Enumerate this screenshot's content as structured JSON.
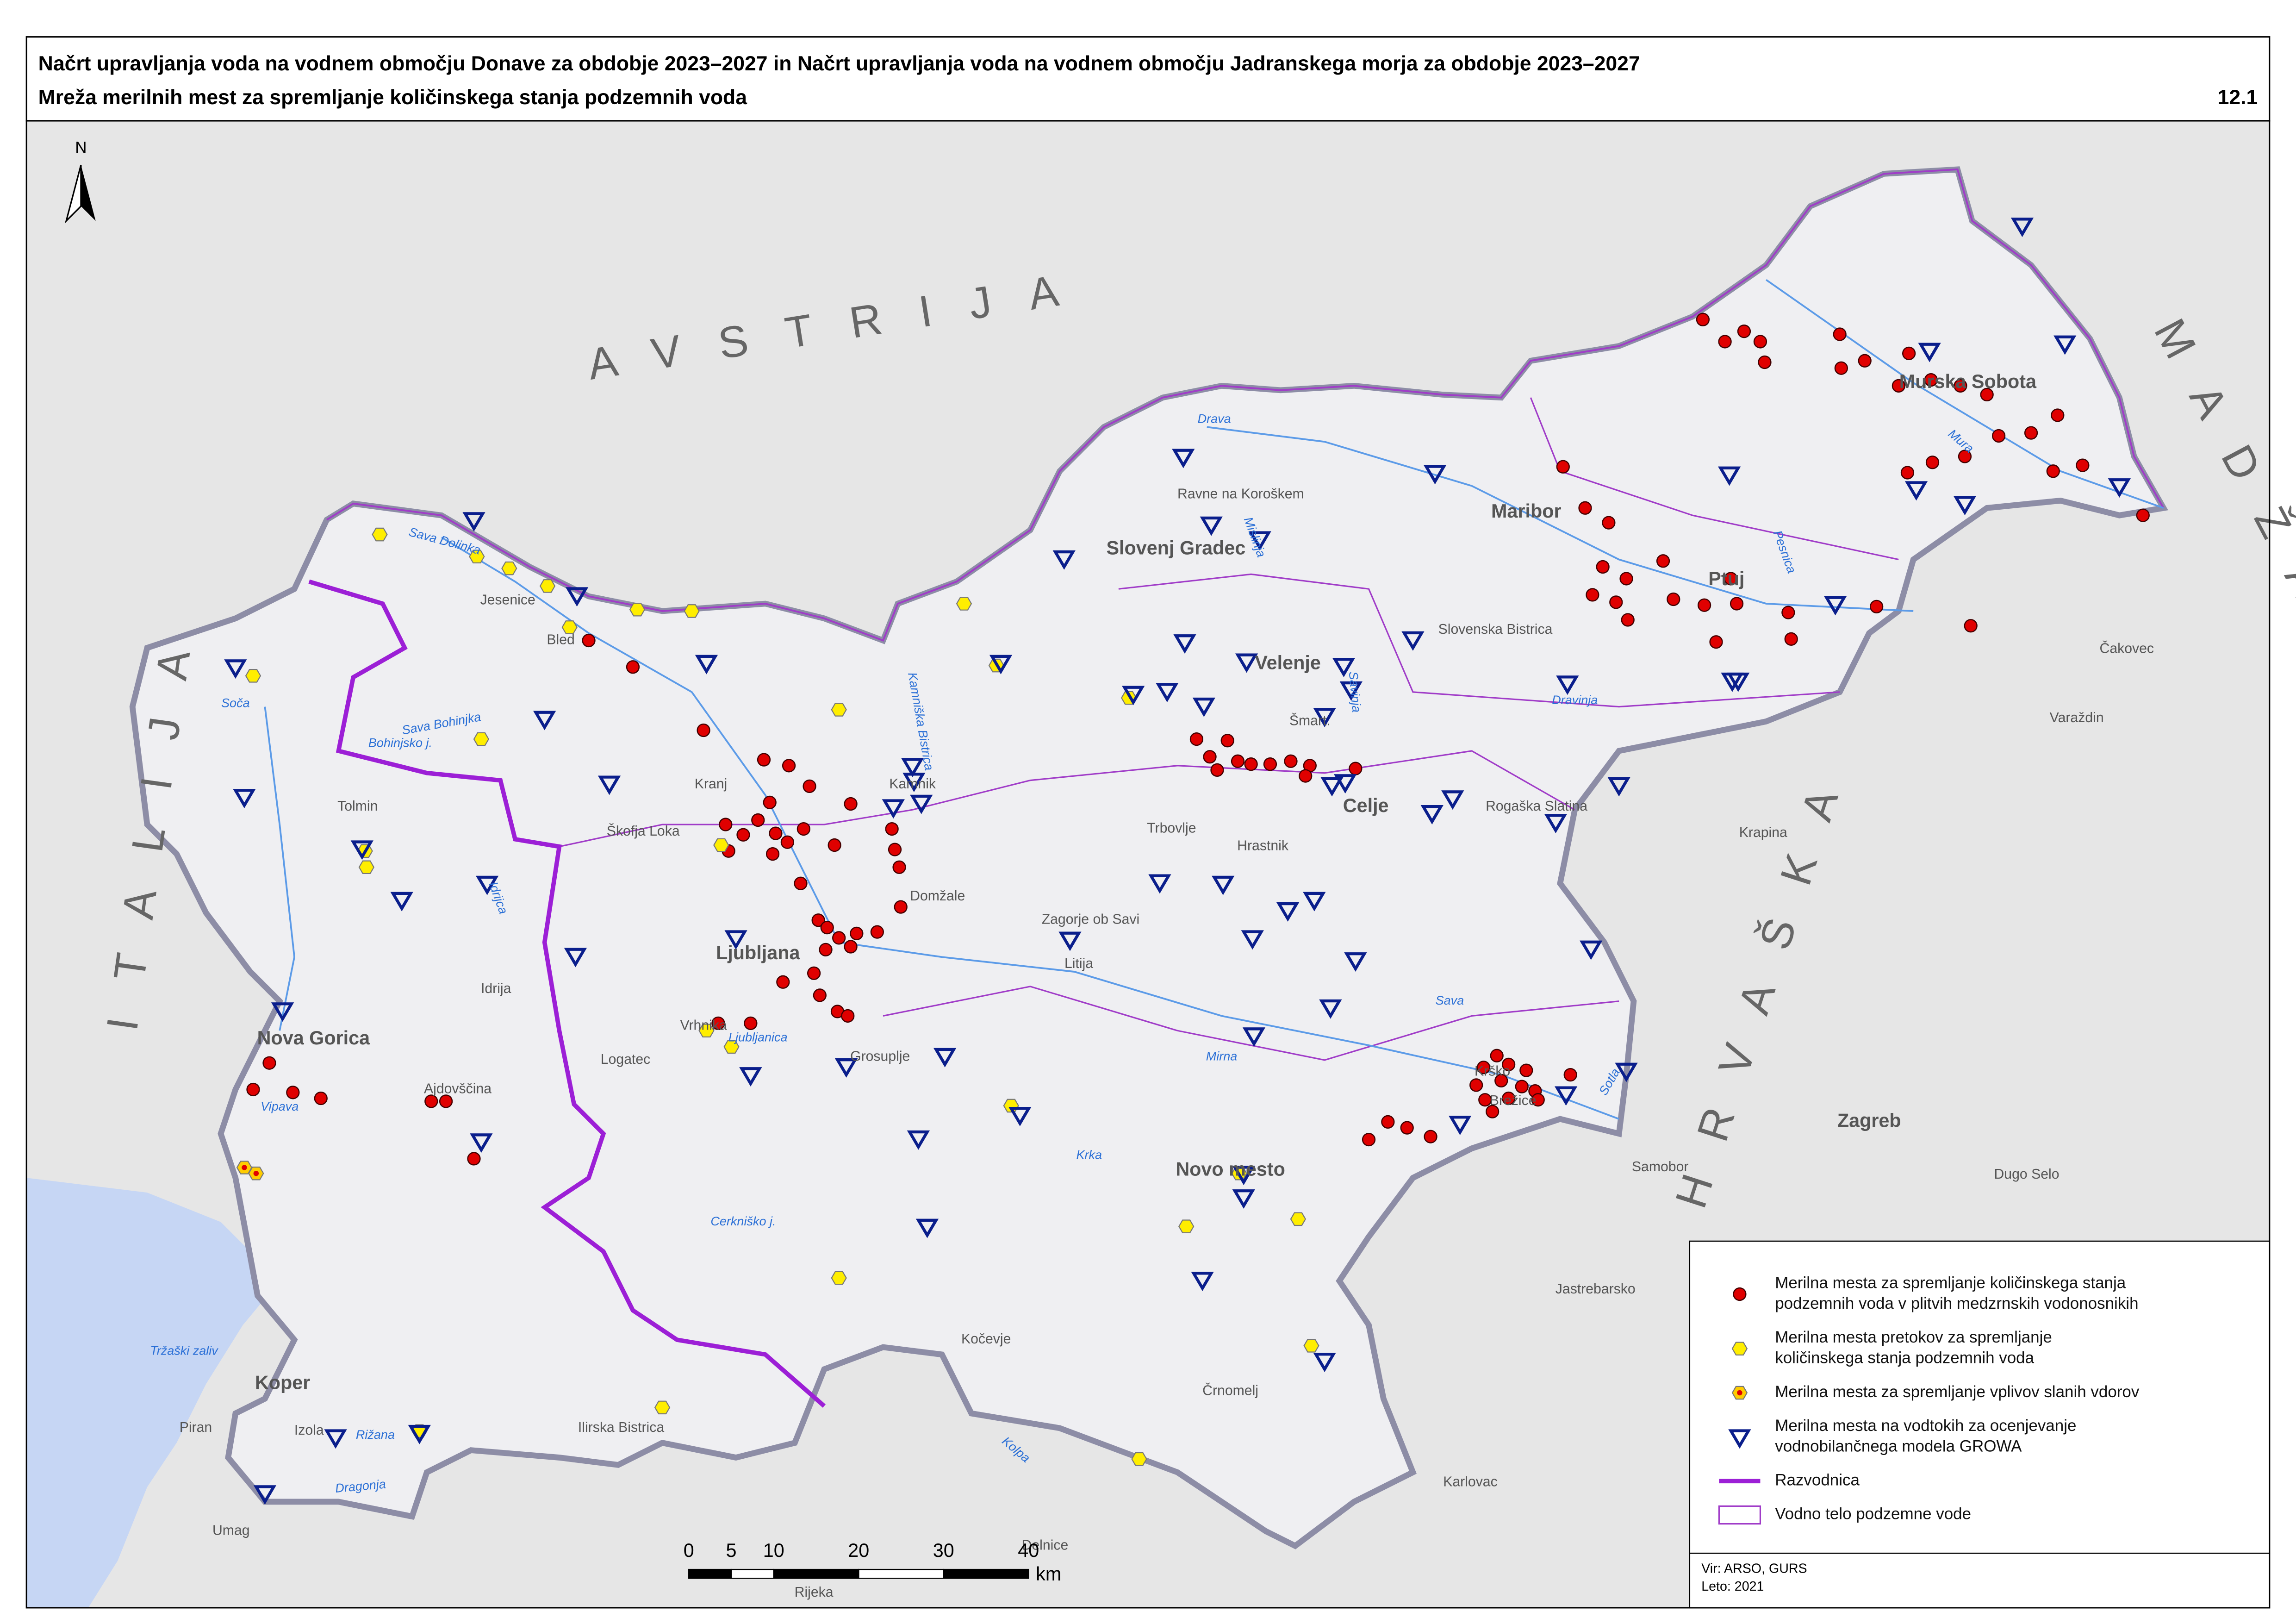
{
  "header": {
    "title": "Načrt upravljanja voda na vodnem območju Donave za obdobje 2023–2027 in Načrt upravljanja voda na vodnem območju Jadranskega morja za obdobje 2023–2027",
    "subtitle": "Mreža merilnih mest za spremljanje količinskega stanja podzemnih voda",
    "map_number": "12.1"
  },
  "north_arrow": "N",
  "countries": [
    "AVSTRIJA",
    "ITALIJA",
    "MADŽARSKA",
    "HRVAŠKA"
  ],
  "places": [
    "Jesenice",
    "Bled",
    "Kranj",
    "Škofja Loka",
    "Kamnik",
    "Domžale",
    "Vrhnika",
    "Logatec",
    "Grosuplje",
    "Idrija",
    "Tolmin",
    "Ajdovščina",
    "Izola",
    "Piran",
    "Umag",
    "Ilirska Bistrica",
    "Kočevje",
    "Črnomelj",
    "Litija",
    "Zagorje ob Savi",
    "Trbovlje",
    "Hrastnik",
    "Ravne na Koroškem",
    "Slovenska Bistrica",
    "Rogaška Slatina",
    "Krško",
    "Brežice",
    "Čakovec",
    "Varaždin",
    "Krapina",
    "Samobor",
    "Dugo Selo",
    "Jastrebarsko",
    "Karlovac",
    "Rijeka",
    "Delnice",
    "Šmart."
  ],
  "major_places": [
    "Ljubljana",
    "Nova Gorica",
    "Koper",
    "Novo mesto",
    "Celje",
    "Velenje",
    "Slovenj Gradec",
    "Maribor",
    "Ptuj",
    "Murska Sobota",
    "Zagreb"
  ],
  "waters": [
    "Tržaški zaliv",
    "Bohinjsko j.",
    "Sava Dolinka",
    "Sava Bohinjka",
    "Soča",
    "Vipava",
    "Rižana",
    "Dragonja",
    "Idrijca",
    "Ljubljanica",
    "Krka",
    "Kolpa",
    "Sava",
    "Mirna",
    "Drava",
    "Mislinja",
    "Dravinja",
    "Mura",
    "Pesnica",
    "Savinja",
    "Sotla",
    "Kamniška Bistrica",
    "Cerkniško j."
  ],
  "legend": {
    "items": [
      {
        "lines": [
          "Merilna mesta za spremljanje količinskega stanja",
          "podzemnih voda v plitvih medzrnskih vodonosnikih"
        ]
      },
      {
        "lines": [
          "Merilna mesta pretokov za spremljanje",
          "količinskega stanja podzemnih voda"
        ]
      },
      {
        "lines": [
          "Merilna mesta za spremljanje vplivov slanih vdorov"
        ]
      },
      {
        "lines": [
          "Merilna mesta na vodtokih za ocenjevanje",
          "vodnobilančnega modela GROWA"
        ]
      },
      {
        "lines": [
          "Razvodnica"
        ]
      },
      {
        "lines": [
          "Vodno telo podzemne vode"
        ]
      }
    ]
  },
  "scale_bar": {
    "ticks": [
      0,
      5,
      10,
      20,
      30,
      40
    ],
    "unit": "km"
  },
  "source": {
    "lines": [
      "Vir: ARSO, GURS",
      "Leto: 2021"
    ]
  }
}
